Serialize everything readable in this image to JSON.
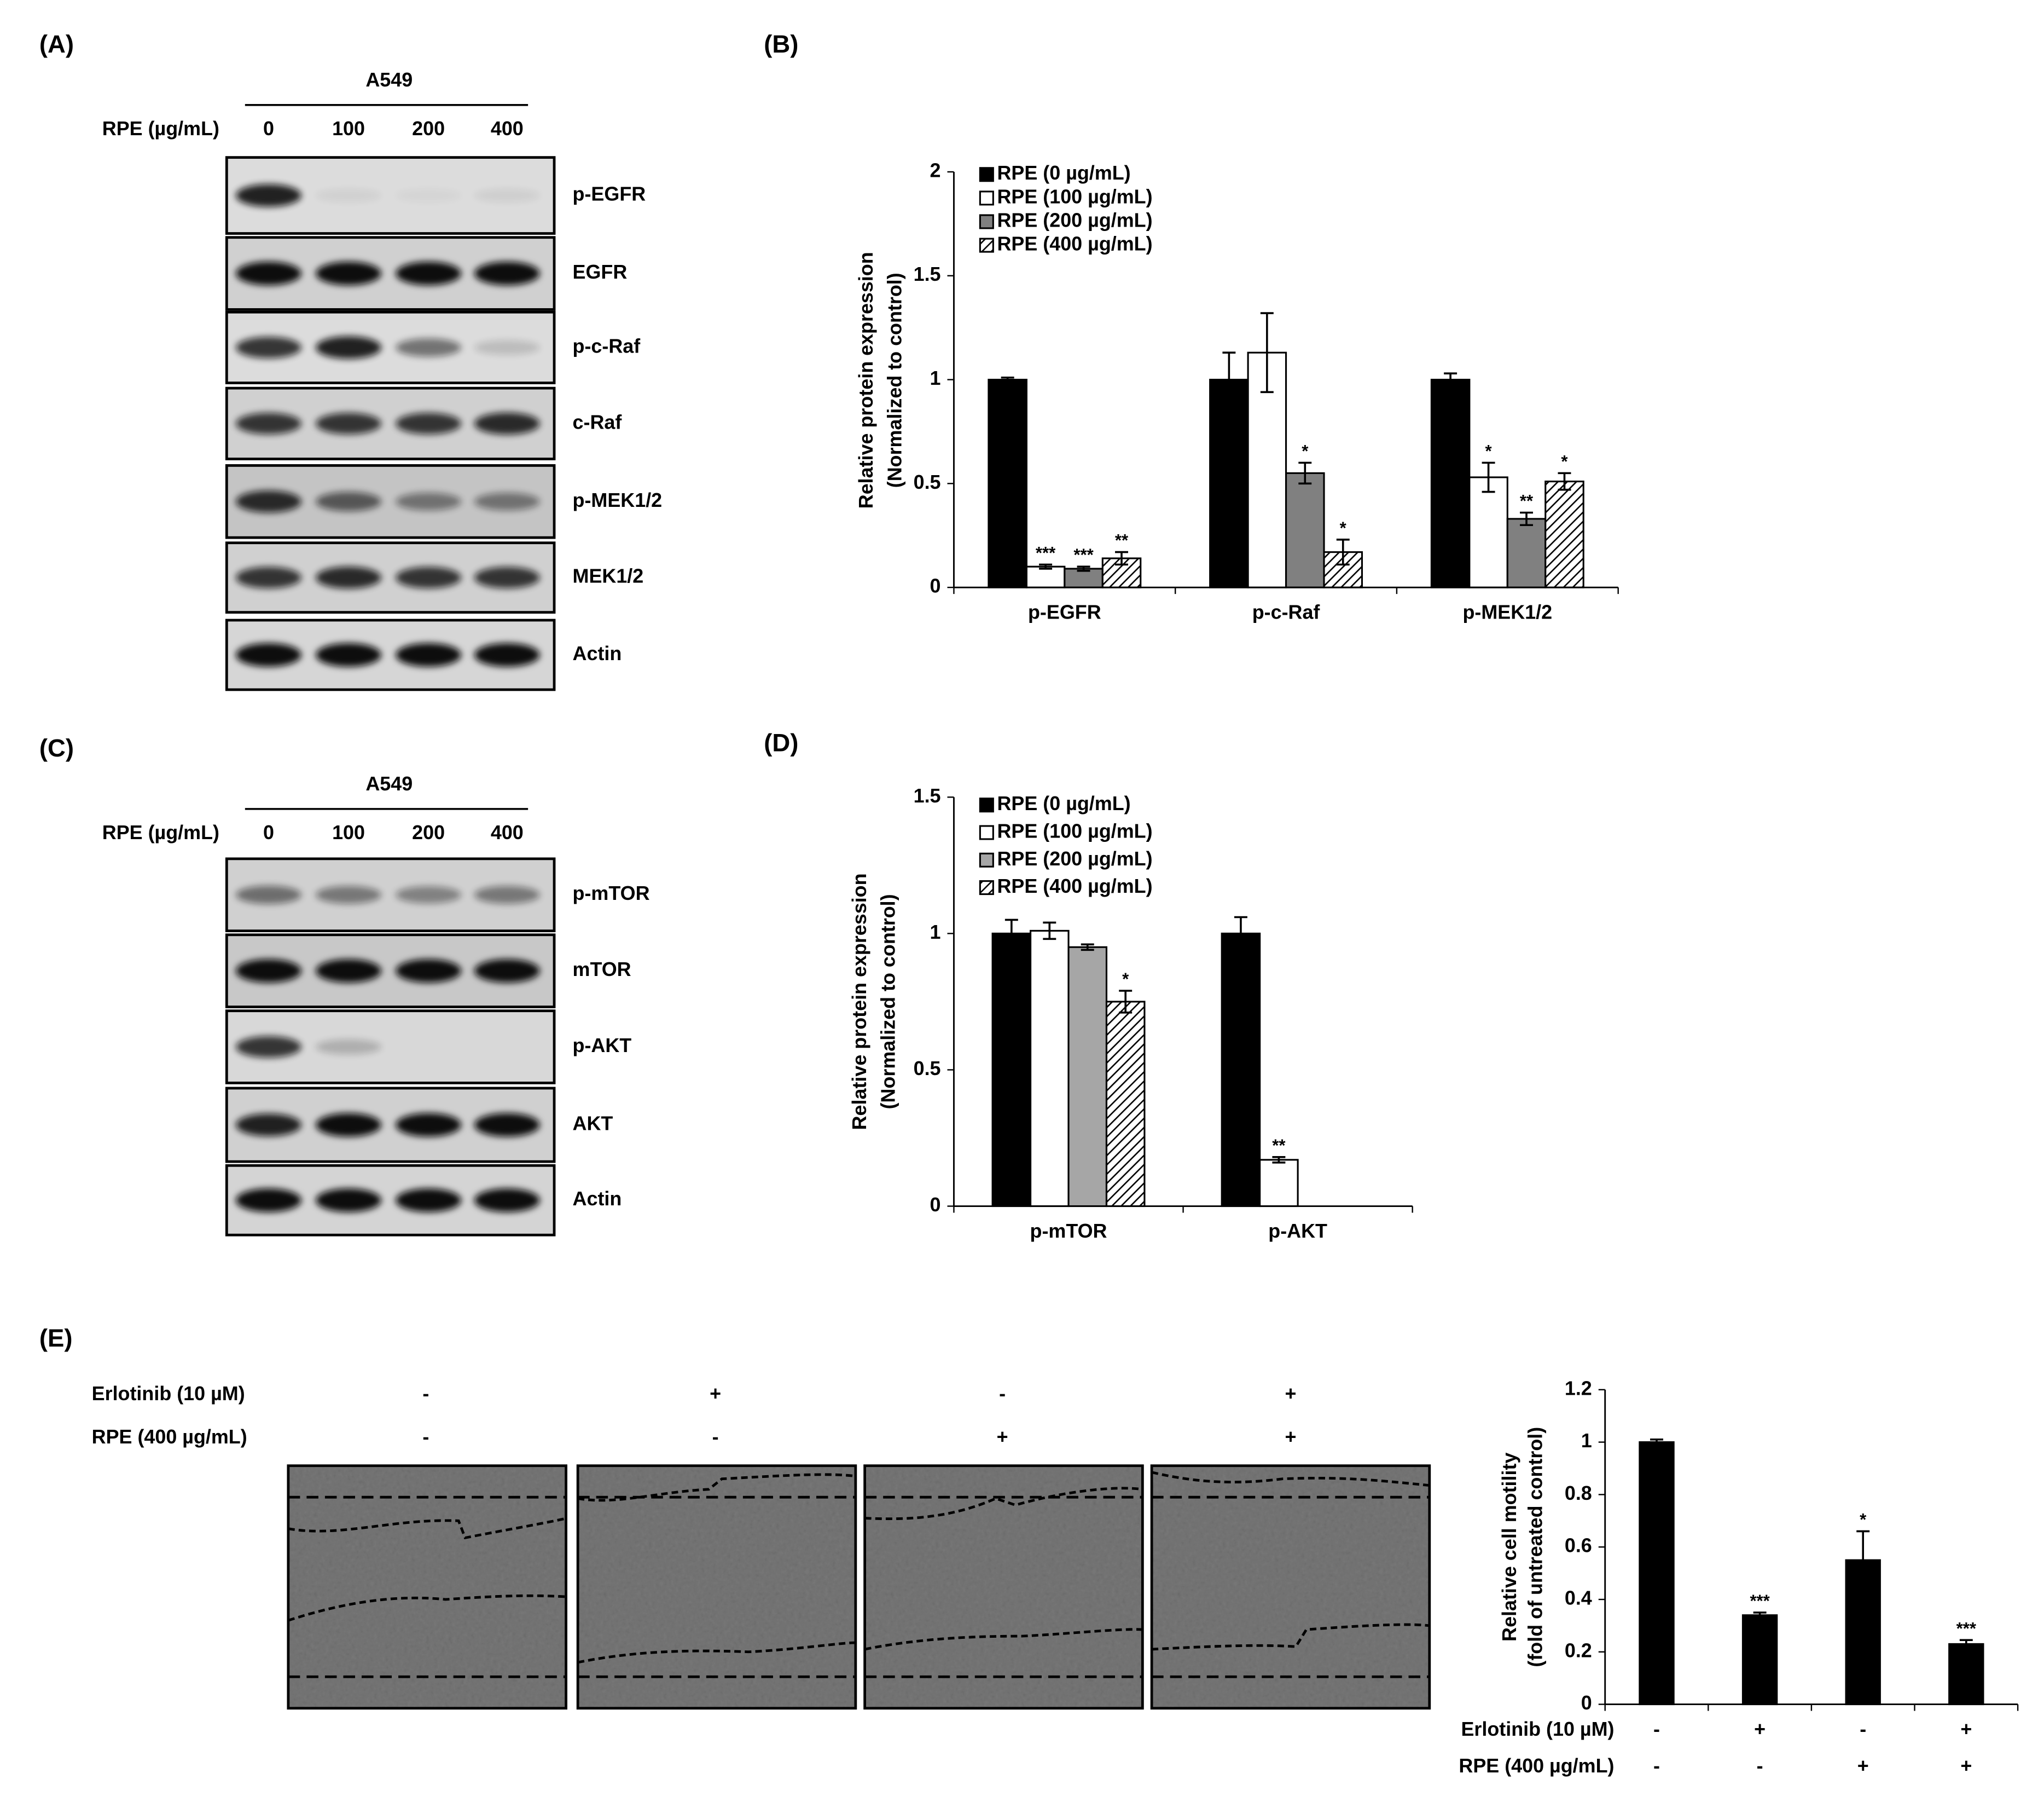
{
  "blot_a": {
    "panel_label": "(A)",
    "cell_line": "A549",
    "dose_label": "RPE (µg/mL)",
    "doses": [
      "0",
      "100",
      "200",
      "400"
    ],
    "proteins": [
      "p-EGFR",
      "EGFR",
      "p-c-Raf",
      "c-Raf",
      "p-MEK1/2",
      "MEK1/2",
      "Actin"
    ]
  },
  "blot_c": {
    "panel_label": "(C)",
    "cell_line": "A549",
    "dose_label": "RPE (µg/mL)",
    "doses": [
      "0",
      "100",
      "200",
      "400"
    ],
    "proteins": [
      "p-mTOR",
      "mTOR",
      "p-AKT",
      "AKT",
      "Actin"
    ]
  },
  "wound_e": {
    "panel_label": "(E)",
    "rows": [
      {
        "label": "Erlotinib (10 µM)",
        "signs": [
          "-",
          "+",
          "-",
          "+"
        ]
      },
      {
        "label": "RPE (400 µg/mL)",
        "signs": [
          "-",
          "-",
          "+",
          "+"
        ]
      }
    ]
  },
  "chart_data": [
    {
      "type": "bar",
      "panel_label": "(B)",
      "ylabel": [
        "Relative protein expression",
        "(Normalized to control)"
      ],
      "categories": [
        "p-EGFR",
        "p-c-Raf",
        "p-MEK1/2"
      ],
      "ylim": [
        0,
        2
      ],
      "yticks": [
        0,
        0.5,
        1,
        1.5,
        2
      ],
      "series": [
        {
          "name": "RPE (0 µg/mL)",
          "color": "#000000",
          "values": [
            1.0,
            1.0,
            1.0
          ],
          "errors": [
            0.01,
            0.13,
            0.03
          ],
          "annotations": [
            null,
            null,
            null
          ]
        },
        {
          "name": "RPE (100 µg/mL)",
          "color": "#ffffff",
          "values": [
            0.1,
            1.13,
            0.53
          ],
          "errors": [
            0.01,
            0.19,
            0.07
          ],
          "annotations": [
            "***",
            null,
            "*"
          ]
        },
        {
          "name": "RPE (200 µg/mL)",
          "color": "#808080",
          "values": [
            0.09,
            0.55,
            0.33
          ],
          "errors": [
            0.01,
            0.05,
            0.03
          ],
          "annotations": [
            "***",
            "*",
            "**"
          ]
        },
        {
          "name": "RPE (400 µg/mL)",
          "color": "#ffffff",
          "hatch": true,
          "values": [
            0.14,
            0.17,
            0.51
          ],
          "errors": [
            0.03,
            0.06,
            0.04
          ],
          "annotations": [
            "**",
            "*",
            "*"
          ]
        }
      ]
    },
    {
      "type": "bar",
      "panel_label": "(D)",
      "ylabel": [
        "Relative protein expression",
        "(Normalized to control)"
      ],
      "categories": [
        "p-mTOR",
        "p-AKT"
      ],
      "ylim": [
        0,
        1.5
      ],
      "yticks": [
        0,
        0.5,
        1,
        1.5
      ],
      "series": [
        {
          "name": "RPE (0 µg/mL)",
          "color": "#000000",
          "values": [
            1.0,
            1.0
          ],
          "errors": [
            0.05,
            0.06
          ],
          "annotations": [
            null,
            null
          ]
        },
        {
          "name": "RPE (100 µg/mL)",
          "color": "#ffffff",
          "values": [
            1.01,
            0.17
          ],
          "errors": [
            0.03,
            0.01
          ],
          "annotations": [
            null,
            "**"
          ]
        },
        {
          "name": "RPE (200 µg/mL)",
          "color": "#a6a6a6",
          "values": [
            0.95,
            null
          ],
          "errors": [
            0.01,
            null
          ],
          "annotations": [
            null,
            null
          ]
        },
        {
          "name": "RPE (400 µg/mL)",
          "color": "#ffffff",
          "hatch": true,
          "values": [
            0.75,
            null
          ],
          "errors": [
            0.04,
            null
          ],
          "annotations": [
            "*",
            null
          ]
        }
      ]
    },
    {
      "type": "bar",
      "ylabel": [
        "Relative cell motility",
        "(fold of untreated control)"
      ],
      "ylim": [
        0,
        1.2
      ],
      "yticks": [
        0,
        0.2,
        0.4,
        0.6,
        0.8,
        1,
        1.2
      ],
      "rows": [
        {
          "label": "Erlotinib (10 µM)",
          "signs": [
            "-",
            "+",
            "-",
            "+"
          ]
        },
        {
          "label": "RPE (400 µg/mL)",
          "signs": [
            "-",
            "-",
            "+",
            "+"
          ]
        }
      ],
      "series": [
        {
          "color": "#000000",
          "values": [
            1.0,
            0.34,
            0.55,
            0.23
          ],
          "errors": [
            0.01,
            0.01,
            0.11,
            0.015
          ],
          "annotations": [
            null,
            "***",
            "*",
            "***"
          ]
        }
      ]
    }
  ]
}
